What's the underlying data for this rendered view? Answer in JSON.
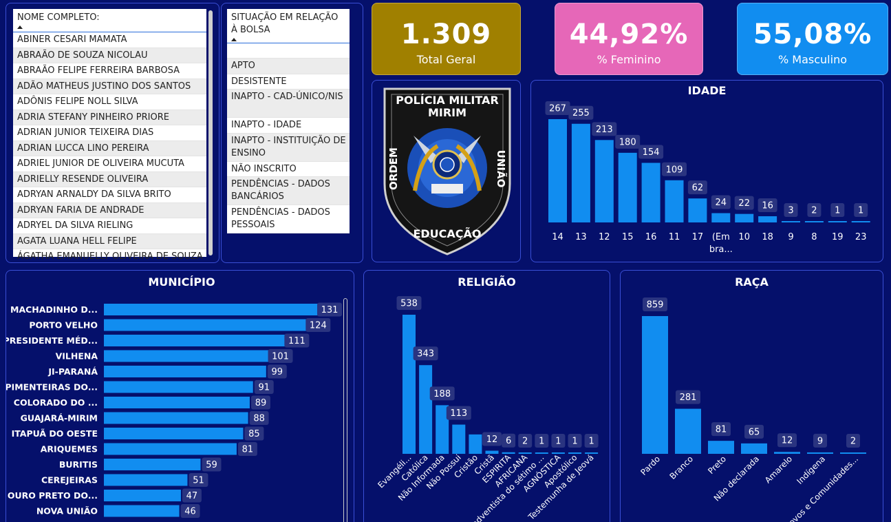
{
  "nome_slicer": {
    "title": "NOME COMPLETO:",
    "items": [
      "ABINER CESARI MAMATA",
      "ABRAÃO DE SOUZA NICOLAU",
      "ABRAÃO FELIPE FERREIRA BARBOSA",
      "ADÃO MATHEUS JUSTINO DOS SANTOS",
      "ADÔNIS FELIPE NOLL SILVA",
      "ADRIA STEFANY PINHEIRO PRIORE",
      "ADRIAN JUNIOR TEIXEIRA DIAS",
      "ADRIAN LUCCA LINO PEREIRA",
      "ADRIEL JUNIOR DE OLIVEIRA MUCUTA",
      "ADRIELLY RESENDE OLIVEIRA",
      "ADRYAN ARNALDY DA SILVA BRITO",
      "ADRYAN FARIA DE ANDRADE",
      "ADRYEL DA SILVA RIELING",
      "AGATA LUANA HELL FELIPE",
      "ÁGATHA EMANUELLY OLIVEIRA DE SOUZA"
    ]
  },
  "situacao_slicer": {
    "title": "SITUAÇÃO EM RELAÇÃO À BOLSA",
    "items": [
      "",
      "APTO",
      "DESISTENTE",
      "INAPTO - CAD-ÚNICO/NIS",
      "INAPTO - IDADE",
      "INAPTO - INSTITUIÇÃO DE ENSINO",
      "NÃO INSCRITO",
      "PENDÊNCIAS - DADOS BANCÁRIOS",
      "PENDÊNCIAS - DADOS PESSOAIS"
    ]
  },
  "cards": {
    "total": {
      "value": "1.309",
      "label": "Total Geral",
      "color": "#a08000"
    },
    "feminino": {
      "value": "44,92%",
      "label": "% Feminino",
      "color": "#e667b8"
    },
    "masculino": {
      "value": "55,08%",
      "label": "% Masculino",
      "color": "#118df0"
    }
  },
  "logo": {
    "top_text": "POLÍCIA MILITAR",
    "top_text2": "MIRIM",
    "left_text": "ORDEM",
    "right_text": "UNIÃO",
    "bottom_text": "EDUCAÇÃO"
  },
  "chart_data": [
    {
      "type": "bar",
      "title": "IDADE",
      "categories": [
        "14",
        "13",
        "12",
        "15",
        "16",
        "11",
        "17",
        "(Em bra...",
        "10",
        "18",
        "9",
        "8",
        "19",
        "23"
      ],
      "values": [
        267,
        255,
        213,
        180,
        154,
        109,
        62,
        24,
        22,
        16,
        3,
        2,
        1,
        1
      ]
    },
    {
      "type": "bar",
      "orientation": "horizontal",
      "title": "MUNICÍPIO",
      "categories": [
        "MACHADINHO D...",
        "PORTO VELHO",
        "PRESIDENTE MÉD...",
        "VILHENA",
        "JI-PARANÁ",
        "PIMENTEIRAS DO...",
        "COLORADO DO ...",
        "GUAJARÁ-MIRIM",
        "ITAPUÃ DO OESTE",
        "ARIQUEMES",
        "BURITIS",
        "CEREJEIRAS",
        "OURO PRETO DO...",
        "NOVA UNIÃO"
      ],
      "values": [
        131,
        124,
        111,
        101,
        99,
        91,
        89,
        88,
        85,
        81,
        59,
        51,
        47,
        46
      ]
    },
    {
      "type": "bar",
      "title": "RELIGIÃO",
      "categories": [
        "Evangéli...",
        "Católica",
        "Não Informada",
        "Não Possui",
        "Cristão",
        "Cristã",
        "ESPIRITA",
        "AFRICANA",
        "adventista do sétimo ...",
        "AGNÓSTICA",
        "Apostólico",
        "Testemunha de Jeová"
      ],
      "values": [
        538,
        343,
        188,
        113,
        null,
        12,
        6,
        2,
        1,
        1,
        1,
        1
      ]
    },
    {
      "type": "bar",
      "title": "RAÇA",
      "categories": [
        "Pardo",
        "Branco",
        "Preto",
        "Não declarada",
        "Amarelo",
        "Indígena",
        "Povos e Comunidades..."
      ],
      "values": [
        859,
        281,
        81,
        65,
        12,
        9,
        2
      ]
    }
  ],
  "colors": {
    "bar": "#118df0",
    "label_bg": "#2a3480",
    "background": "#05106b",
    "border": "#3a4fd6"
  }
}
